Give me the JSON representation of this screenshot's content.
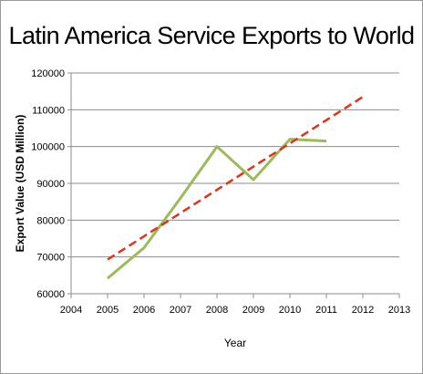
{
  "chart_data": {
    "type": "line",
    "title": "Latin America Service Exports to World",
    "xlabel": "Year",
    "ylabel": "Export Value  (USD Million)",
    "xlim": [
      2004,
      2013
    ],
    "ylim": [
      60000,
      120000
    ],
    "x_ticks": [
      "2004",
      "2005",
      "2006",
      "2007",
      "2008",
      "2009",
      "2010",
      "2011",
      "2012",
      "2013"
    ],
    "y_ticks": [
      "60000",
      "70000",
      "80000",
      "90000",
      "100000",
      "110000",
      "120000"
    ],
    "grid": "horizontal",
    "legend": "none",
    "series": [
      {
        "style": "solid",
        "color": "#9bbb59",
        "x": [
          2005,
          2006,
          2007,
          2008,
          2009,
          2010,
          2011
        ],
        "values": [
          64200,
          72500,
          86000,
          100000,
          91000,
          102000,
          101500
        ]
      },
      {
        "style": "dashed",
        "color": "#e2321b",
        "x": [
          2005,
          2012
        ],
        "values": [
          69300,
          113500
        ]
      }
    ]
  }
}
